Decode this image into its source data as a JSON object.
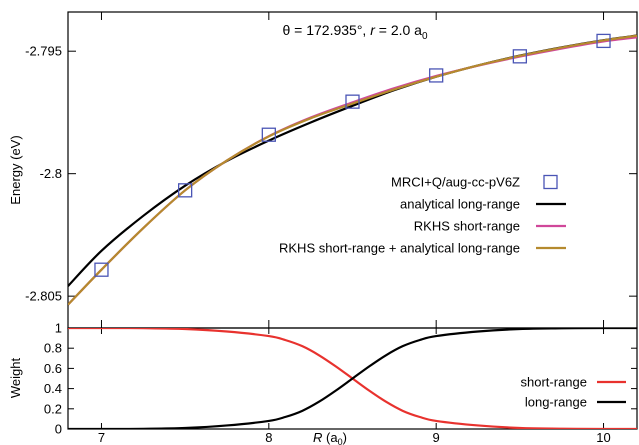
{
  "chart_data": [
    {
      "type": "line",
      "title_parts": {
        "theta": "θ = 172.935°, ",
        "r_sym": "r",
        "r_val": " = 2.0 a",
        "r_sub": "0"
      },
      "ylabel": "Energy (eV)",
      "xlim": [
        6.8,
        10.2
      ],
      "ylim": [
        -2.8063,
        -2.7934
      ],
      "yticks": [
        -2.795,
        -2.8,
        -2.805
      ],
      "ytick_labels": [
        "-2.795",
        "-2.8",
        "-2.805"
      ],
      "legend_position": "right",
      "series": [
        {
          "name": "MRCI+Q/aug-cc-pV6Z",
          "kind": "markers",
          "color": "#4a55b5",
          "x": [
            7,
            7.5,
            8,
            8.5,
            9,
            9.5,
            10
          ],
          "y": [
            -2.80392,
            -2.80068,
            -2.79841,
            -2.79706,
            -2.79599,
            -2.79521,
            -2.79458
          ]
        },
        {
          "name": "analytical long-range",
          "kind": "line",
          "color": "#000000",
          "x": [
            6.8,
            7.0,
            7.25,
            7.5,
            7.75,
            8.0,
            8.25,
            8.5,
            8.75,
            9.0,
            9.25,
            9.5,
            9.75,
            10.0,
            10.2
          ],
          "y": [
            -2.80459,
            -2.80315,
            -2.80172,
            -2.80049,
            -2.79948,
            -2.79865,
            -2.79791,
            -2.79723,
            -2.79659,
            -2.79604,
            -2.79558,
            -2.79518,
            -2.79484,
            -2.79455,
            -2.79436
          ]
        },
        {
          "name": "RKHS short-range",
          "kind": "line",
          "color": "#d0479a",
          "x": [
            6.8,
            7.0,
            7.25,
            7.5,
            7.75,
            8.0,
            8.25,
            8.5,
            8.75,
            9.0,
            9.25,
            9.5,
            9.75,
            10.0,
            10.2
          ],
          "y": [
            -2.80535,
            -2.80392,
            -2.80222,
            -2.80068,
            -2.79946,
            -2.79847,
            -2.79771,
            -2.79709,
            -2.79651,
            -2.79601,
            -2.79559,
            -2.79522,
            -2.79489,
            -2.7946,
            -2.79443
          ]
        },
        {
          "name": "RKHS short-range + analytical long-range",
          "kind": "line",
          "color": "#b58a2e",
          "x": [
            6.8,
            7.0,
            7.25,
            7.5,
            7.75,
            8.0,
            8.25,
            8.5,
            8.75,
            9.0,
            9.25,
            9.5,
            9.75,
            10.0,
            10.2
          ],
          "y": [
            -2.80535,
            -2.80392,
            -2.80222,
            -2.80068,
            -2.79946,
            -2.79848,
            -2.79774,
            -2.79714,
            -2.79656,
            -2.79604,
            -2.79558,
            -2.79519,
            -2.79485,
            -2.79456,
            -2.79437
          ]
        }
      ]
    },
    {
      "type": "line",
      "ylabel": "Weight",
      "xlabel_sym": "R",
      "xlabel_unit": " (a",
      "xlabel_sub": "0",
      "xlabel_close": ")",
      "xlim": [
        6.8,
        10.2
      ],
      "ylim": [
        0,
        1
      ],
      "xticks": [
        7,
        8,
        9,
        10
      ],
      "xtick_labels": [
        "7",
        "8",
        "9",
        "10"
      ],
      "yticks": [
        0,
        0.2,
        0.4,
        0.6,
        0.8,
        1
      ],
      "ytick_labels": [
        "0",
        "0.2",
        "0.4",
        "0.6",
        "0.8",
        "1"
      ],
      "legend_position": "right",
      "series": [
        {
          "name": "short-range",
          "color": "#e8322e",
          "x": [
            6.8,
            7.0,
            7.25,
            7.5,
            7.75,
            8.0,
            8.1,
            8.2,
            8.3,
            8.4,
            8.5,
            8.6,
            8.7,
            8.8,
            8.9,
            9.0,
            9.25,
            9.5,
            9.75,
            10.0,
            10.2
          ],
          "y": [
            1.0,
            1.0,
            0.998,
            0.99,
            0.965,
            0.92,
            0.88,
            0.82,
            0.73,
            0.62,
            0.5,
            0.38,
            0.27,
            0.18,
            0.12,
            0.08,
            0.035,
            0.01,
            0.003,
            0.0,
            0.0
          ]
        },
        {
          "name": "long-range",
          "color": "#000000",
          "x": [
            6.8,
            7.0,
            7.25,
            7.5,
            7.75,
            8.0,
            8.1,
            8.2,
            8.3,
            8.4,
            8.5,
            8.6,
            8.7,
            8.8,
            8.9,
            9.0,
            9.25,
            9.5,
            9.75,
            10.0,
            10.2
          ],
          "y": [
            0.0,
            0.0,
            0.002,
            0.01,
            0.035,
            0.08,
            0.12,
            0.18,
            0.27,
            0.38,
            0.5,
            0.62,
            0.73,
            0.82,
            0.88,
            0.92,
            0.965,
            0.99,
            0.997,
            1.0,
            1.0
          ]
        }
      ]
    }
  ]
}
